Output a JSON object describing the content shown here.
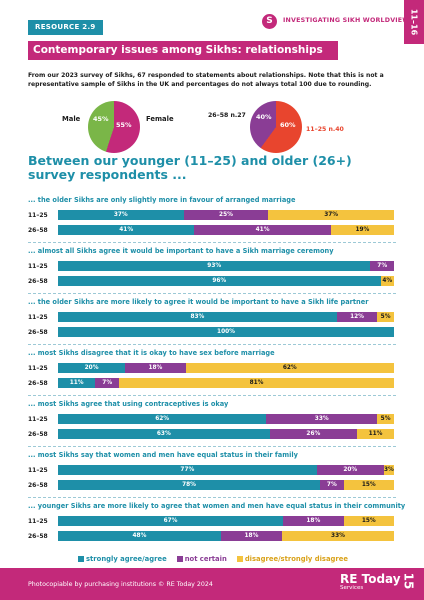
{
  "header": {
    "resource_tag": "RESOURCE 2.9",
    "series_logo": "S",
    "series_title": "INVESTIGATING SIKH WORLDVIEWS",
    "age_tab": "11–16"
  },
  "title": "Contemporary issues among Sikhs: relationships",
  "intro": "From our 2023 survey of Sikhs, 67 responded to statements about relationships. Note that this is not a representative sample of Sikhs in the UK and percentages do not always total 100 due to rounding.",
  "gender_pie": {
    "male_label": "Male",
    "female_label": "Female",
    "male_pct": 45,
    "female_pct": 55,
    "male_text": "45%",
    "female_text": "55%",
    "male_color": "#7ab648",
    "female_color": "#c3297a"
  },
  "age_pie": {
    "older_label": "26–58 n.27",
    "younger_label": "11–25 n.40",
    "older_pct": 40,
    "younger_pct": 60,
    "older_text": "40%",
    "younger_text": "60%",
    "older_color": "#8a3d95",
    "younger_color": "#e8452e"
  },
  "headline": "Between our younger (11–25) and older (26+) survey respondents ...",
  "colors": {
    "agree": "#1e8fa8",
    "not_certain": "#8a3d95",
    "disagree": "#f4c33e",
    "brand": "#c3297a"
  },
  "chart_data": {
    "type": "bar",
    "orientation": "horizontal-stacked",
    "series_names": [
      "strongly agree/agree",
      "not certain",
      "disagree/strongly disagree"
    ],
    "sections": [
      {
        "statement": "... the older Sikhs are only slightly more in favour of arranged marriage",
        "rows": [
          {
            "group": "11–25",
            "values": [
              37,
              25,
              37
            ],
            "labels": [
              "37%",
              "25%",
              "37%"
            ]
          },
          {
            "group": "26–58",
            "values": [
              41,
              41,
              19
            ],
            "labels": [
              "41%",
              "41%",
              "19%"
            ]
          }
        ]
      },
      {
        "statement": "... almost all Sikhs agree it would be important to have a Sikh marriage ceremony",
        "rows": [
          {
            "group": "11–25",
            "values": [
              93,
              7,
              0
            ],
            "labels": [
              "93%",
              "7%",
              ""
            ]
          },
          {
            "group": "26–58",
            "values": [
              96,
              0,
              4
            ],
            "labels": [
              "96%",
              "",
              "4%"
            ]
          }
        ]
      },
      {
        "statement": "... the older Sikhs are more likely to agree it would be important to have a Sikh life partner",
        "rows": [
          {
            "group": "11–25",
            "values": [
              83,
              12,
              5
            ],
            "labels": [
              "83%",
              "12%",
              "5%"
            ]
          },
          {
            "group": "26–58",
            "values": [
              100,
              0,
              0
            ],
            "labels": [
              "100%",
              "",
              ""
            ]
          }
        ]
      },
      {
        "statement": "... most Sikhs disagree that it is okay to have sex before marriage",
        "rows": [
          {
            "group": "11–25",
            "values": [
              20,
              18,
              62
            ],
            "labels": [
              "20%",
              "18%",
              "62%"
            ]
          },
          {
            "group": "26–58",
            "values": [
              11,
              7,
              81
            ],
            "labels": [
              "11%",
              "7%",
              "81%"
            ]
          }
        ]
      },
      {
        "statement": "... most Sikhs agree that using contraceptives is okay",
        "rows": [
          {
            "group": "11–25",
            "values": [
              62,
              33,
              5
            ],
            "labels": [
              "62%",
              "33%",
              "5%"
            ]
          },
          {
            "group": "26–58",
            "values": [
              63,
              26,
              11
            ],
            "labels": [
              "63%",
              "26%",
              "11%"
            ]
          }
        ]
      },
      {
        "statement": "... most Sikhs say that women and men have equal status in their family",
        "rows": [
          {
            "group": "11–25",
            "values": [
              77,
              20,
              3
            ],
            "labels": [
              "77%",
              "20%",
              "3%"
            ]
          },
          {
            "group": "26–58",
            "values": [
              78,
              7,
              15
            ],
            "labels": [
              "78%",
              "7%",
              "15%"
            ]
          }
        ]
      },
      {
        "statement": "... younger Sikhs are more likely to agree that women and men have equal status in their community",
        "rows": [
          {
            "group": "11–25",
            "values": [
              67,
              18,
              15
            ],
            "labels": [
              "67%",
              "18%",
              "15%"
            ]
          },
          {
            "group": "26–58",
            "values": [
              48,
              18,
              33
            ],
            "labels": [
              "48%",
              "18%",
              "33%"
            ]
          }
        ]
      }
    ],
    "legend": [
      "strongly agree/agree",
      "not certain",
      "disagree/strongly disagree"
    ],
    "legend_position": "bottom"
  },
  "footer": {
    "note": "Photocopiable by purchasing institutions © RE Today 2024",
    "logo": "RE Today",
    "logo_sub": "Services",
    "page_number": "15"
  }
}
